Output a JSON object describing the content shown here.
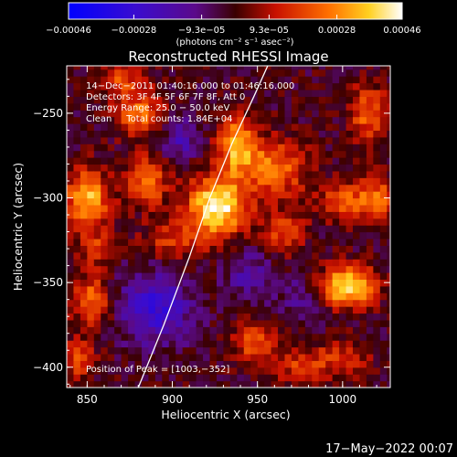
{
  "chart_data": {
    "type": "heatmap",
    "title": "Reconstructed RHESSI Image",
    "xlabel": "Heliocentric X (arcsec)",
    "ylabel": "Heliocentric Y (arcsec)",
    "xlim": [
      838,
      1028
    ],
    "ylim": [
      -412,
      -222
    ],
    "x_ticks": [
      850,
      900,
      950,
      1000
    ],
    "x_tick_labels": [
      "850",
      "900",
      "950",
      "1000"
    ],
    "y_ticks": [
      -250,
      -300,
      -350,
      -400
    ],
    "y_tick_labels": [
      "−250",
      "−300",
      "−350",
      "−400"
    ],
    "colorbar": {
      "min": -0.00046,
      "max": 0.00046,
      "colormap": "blue-purple-red-yellow-white",
      "tick_values": [
        -0.00046,
        -0.00028,
        -9.3e-05,
        9.3e-05,
        0.00028,
        0.00046
      ],
      "tick_labels": [
        "−0.00046",
        "−0.00028",
        "−9.3e−05",
        "9.3e−05",
        "0.00028",
        "0.00046"
      ],
      "units": "(photons cm⁻² s⁻¹ asec⁻²)"
    },
    "grid": false,
    "annotations": [
      "14−Dec−2011 01:40:16.000 to 01:46:16.000",
      "Detectors: 3F 4F 5F 6F 7F 8F, Att 0",
      "Energy Range: 25.0 − 50.0 keV",
      "Clean     Total counts: 1.84E+04"
    ],
    "peak_label": "Position of Peak = [1003,−352]",
    "peak_position": [
      1003,
      -352
    ],
    "limb_curve": [
      [
        880,
        -412
      ],
      [
        895,
        -375
      ],
      [
        910,
        -335
      ],
      [
        922,
        -300
      ],
      [
        935,
        -268
      ],
      [
        948,
        -240
      ],
      [
        956,
        -222
      ]
    ],
    "sources": [
      {
        "x": 926,
        "y": -305,
        "sx": 12,
        "sy": 12,
        "amp": 1.0
      },
      {
        "x": 1003,
        "y": -352,
        "sx": 11,
        "sy": 8,
        "amp": 0.95
      },
      {
        "x": 938,
        "y": -268,
        "sx": 8,
        "sy": 12,
        "amp": 0.7
      },
      {
        "x": 850,
        "y": -300,
        "sx": 9,
        "sy": 12,
        "amp": 0.75
      },
      {
        "x": 885,
        "y": -290,
        "sx": 8,
        "sy": 10,
        "amp": 0.6
      },
      {
        "x": 880,
        "y": -250,
        "sx": 10,
        "sy": 9,
        "amp": 0.55
      },
      {
        "x": 960,
        "y": -282,
        "sx": 14,
        "sy": 12,
        "amp": 0.55
      },
      {
        "x": 965,
        "y": -320,
        "sx": 9,
        "sy": 9,
        "amp": 0.4
      },
      {
        "x": 1000,
        "y": -302,
        "sx": 10,
        "sy": 8,
        "amp": 0.45
      },
      {
        "x": 1015,
        "y": -250,
        "sx": 8,
        "sy": 12,
        "amp": 0.5
      },
      {
        "x": 852,
        "y": -360,
        "sx": 8,
        "sy": 10,
        "amp": 0.55
      },
      {
        "x": 948,
        "y": -385,
        "sx": 9,
        "sy": 9,
        "amp": 0.45
      },
      {
        "x": 1000,
        "y": -395,
        "sx": 12,
        "sy": 8,
        "amp": 0.35
      },
      {
        "x": 975,
        "y": -400,
        "sx": 10,
        "sy": 8,
        "amp": 0.35
      },
      {
        "x": 845,
        "y": -395,
        "sx": 7,
        "sy": 8,
        "amp": 0.45
      },
      {
        "x": 855,
        "y": -330,
        "sx": 7,
        "sy": 7,
        "amp": 0.35
      },
      {
        "x": 900,
        "y": -325,
        "sx": 12,
        "sy": 8,
        "amp": 0.35
      },
      {
        "x": 870,
        "y": -230,
        "sx": 10,
        "sy": 7,
        "amp": 0.4
      },
      {
        "x": 1020,
        "y": -300,
        "sx": 8,
        "sy": 9,
        "amp": 0.5
      }
    ],
    "negative_regions": [
      {
        "x": 890,
        "y": -365,
        "sx": 14,
        "sy": 14,
        "amp": 0.55
      },
      {
        "x": 905,
        "y": -265,
        "sx": 8,
        "sy": 8,
        "amp": 0.35
      },
      {
        "x": 945,
        "y": -345,
        "sx": 10,
        "sy": 10,
        "amp": 0.3
      },
      {
        "x": 975,
        "y": -360,
        "sx": 8,
        "sy": 10,
        "amp": 0.25
      }
    ]
  },
  "footer": {
    "date": "17−May−2022 00:07"
  }
}
